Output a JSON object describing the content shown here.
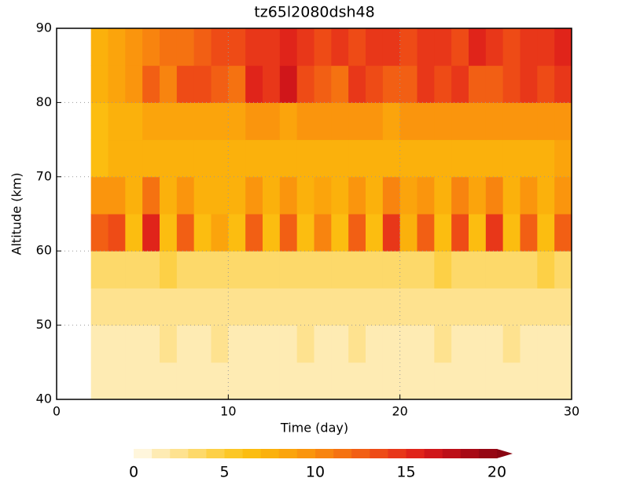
{
  "chart_data": {
    "type": "heatmap",
    "title": "tz65l2080dsh48",
    "x_label": "Time (day)",
    "y_label": "Altitude (km)",
    "x": [
      0,
      1,
      2,
      3,
      4,
      5,
      6,
      7,
      8,
      9,
      10,
      11,
      12,
      13,
      14,
      15,
      16,
      17,
      18,
      19,
      20,
      21,
      22,
      23,
      24,
      25,
      26,
      27,
      28,
      29,
      30
    ],
    "y": [
      40,
      45,
      50,
      55,
      60,
      65,
      70,
      75,
      80,
      85,
      90
    ],
    "values": [
      [
        null,
        null,
        1,
        1,
        1,
        1,
        1,
        1,
        1,
        1,
        1,
        1,
        1,
        1,
        1,
        1,
        1,
        1,
        1,
        1,
        1,
        1,
        1,
        1,
        1,
        1,
        1,
        1,
        1,
        1
      ],
      [
        null,
        null,
        1,
        1,
        1,
        1,
        2,
        1,
        1,
        2,
        1,
        1,
        1,
        1,
        2,
        1,
        1,
        2,
        1,
        1,
        1,
        1,
        2,
        1,
        1,
        1,
        2,
        1,
        1,
        1
      ],
      [
        null,
        null,
        2,
        2,
        2,
        2,
        2,
        2,
        2,
        2,
        2,
        2,
        2,
        2,
        2,
        2,
        2,
        2,
        2,
        2,
        2,
        2,
        2,
        2,
        2,
        2,
        2,
        2,
        2,
        2
      ],
      [
        null,
        null,
        3,
        3,
        3,
        3,
        4,
        3,
        3,
        3,
        3,
        3,
        3,
        3,
        3,
        3,
        3,
        3,
        3,
        3,
        3,
        3,
        4,
        3,
        3,
        3,
        3,
        3,
        4,
        3
      ],
      [
        null,
        null,
        12,
        13,
        6,
        15,
        6,
        12,
        6,
        8,
        6,
        12,
        6,
        12,
        6,
        10,
        6,
        12,
        6,
        14,
        7,
        12,
        6,
        13,
        6,
        14,
        6,
        12,
        6,
        12
      ],
      [
        null,
        null,
        9,
        9,
        7,
        11,
        7,
        9,
        7,
        7,
        7,
        9,
        7,
        9,
        7,
        8,
        7,
        9,
        7,
        10,
        8,
        9,
        7,
        10,
        8,
        10,
        7,
        9,
        7,
        9
      ],
      [
        null,
        null,
        6,
        7,
        7,
        7,
        7,
        7,
        7,
        7,
        7,
        7,
        7,
        7,
        7,
        7,
        7,
        7,
        7,
        7,
        7,
        7,
        7,
        7,
        7,
        7,
        7,
        7,
        7,
        8
      ],
      [
        null,
        null,
        6,
        7,
        7,
        8,
        8,
        8,
        8,
        8,
        8,
        9,
        9,
        8,
        9,
        9,
        9,
        9,
        9,
        8,
        9,
        9,
        9,
        9,
        9,
        9,
        9,
        9,
        9,
        9
      ],
      [
        null,
        null,
        7,
        8,
        9,
        12,
        10,
        13,
        13,
        12,
        11,
        15,
        14,
        16,
        13,
        12,
        11,
        14,
        13,
        12,
        12,
        14,
        13,
        14,
        12,
        12,
        13,
        14,
        13,
        14
      ],
      [
        null,
        null,
        7,
        8,
        9,
        10,
        11,
        11,
        12,
        13,
        13,
        14,
        14,
        15,
        14,
        13,
        14,
        13,
        14,
        14,
        13,
        14,
        14,
        13,
        15,
        14,
        13,
        14,
        14,
        15
      ]
    ],
    "xlim": [
      0,
      30
    ],
    "xticks": [
      0,
      10,
      20,
      30
    ],
    "ylim": [
      40,
      90
    ],
    "yticks": [
      40,
      50,
      60,
      70,
      80,
      90
    ],
    "grid": true,
    "clim": [
      0,
      20
    ],
    "cticks": [
      0,
      5,
      10,
      15,
      20
    ],
    "colors": [
      "#fff6dc",
      "#feebb3",
      "#fee28f",
      "#fdd96a",
      "#fdd046",
      "#fcc726",
      "#fcbd10",
      "#fbb10c",
      "#fba40c",
      "#fa950d",
      "#f8840f",
      "#f57211",
      "#f25f14",
      "#ee4b16",
      "#e83719",
      "#e0241a",
      "#d0161a",
      "#bd0f18",
      "#a80a16",
      "#960714",
      "#8a0512"
    ]
  }
}
